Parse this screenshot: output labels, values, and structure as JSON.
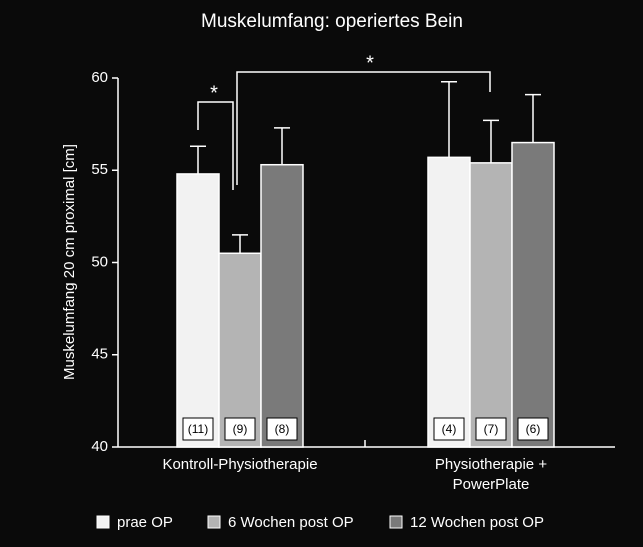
{
  "chart_data": {
    "type": "bar",
    "title": "Muskelumfang: operiertes Bein",
    "y_label": "Muskelumfang 20 cm proximal [cm]",
    "categories": [
      "Kontroll-Physiotherapie",
      "Physiotherapie +\nPowerPlate"
    ],
    "series": [
      {
        "name": "prae OP",
        "color": "#f2f2f2",
        "values": [
          54.8,
          55.7
        ],
        "errors": [
          1.5,
          4.1
        ],
        "labels": [
          "(11)",
          "(4)"
        ]
      },
      {
        "name": "6 Wochen post OP",
        "color": "#b4b4b4",
        "values": [
          50.5,
          55.4
        ],
        "errors": [
          1.0,
          2.3
        ],
        "labels": [
          "(9)",
          "(7)"
        ]
      },
      {
        "name": "12 Wochen post OP",
        "color": "#7a7a7a",
        "values": [
          55.3,
          56.5
        ],
        "errors": [
          2.0,
          2.6
        ],
        "labels": [
          "(8)",
          "(6)"
        ]
      }
    ],
    "annotations": [
      "*",
      "*"
    ],
    "ylim": [
      40,
      60
    ],
    "yticks": [
      40,
      45,
      50,
      55,
      60
    ]
  }
}
